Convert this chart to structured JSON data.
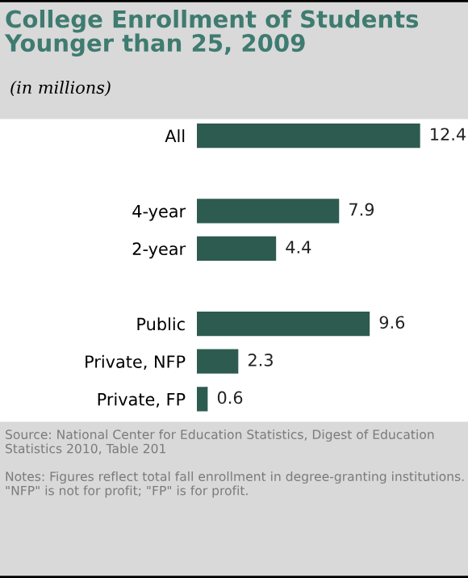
{
  "chart_data": {
    "type": "bar",
    "orientation": "horizontal",
    "title": "College Enrollment of Students Younger than 25, 2009",
    "subtitle": "(in millions)",
    "categories": [
      "All",
      null,
      "4-year",
      "2-year",
      null,
      "Public",
      "Private, NFP",
      "Private, FP"
    ],
    "values": [
      12.4,
      null,
      7.9,
      4.4,
      null,
      9.6,
      2.3,
      0.6
    ],
    "color": "#2d5b4f",
    "data_labels": true,
    "tick_labels": "y",
    "grid": false,
    "legend": false,
    "annotations": [
      "Source: National Center for Education Statistics, Digest of Education Statistics 2010, Table 201",
      "Notes: Figures reflect total fall enrollment in degree-granting institutions. \"NFP\" is not for profit; \"FP\" is for profit."
    ]
  }
}
